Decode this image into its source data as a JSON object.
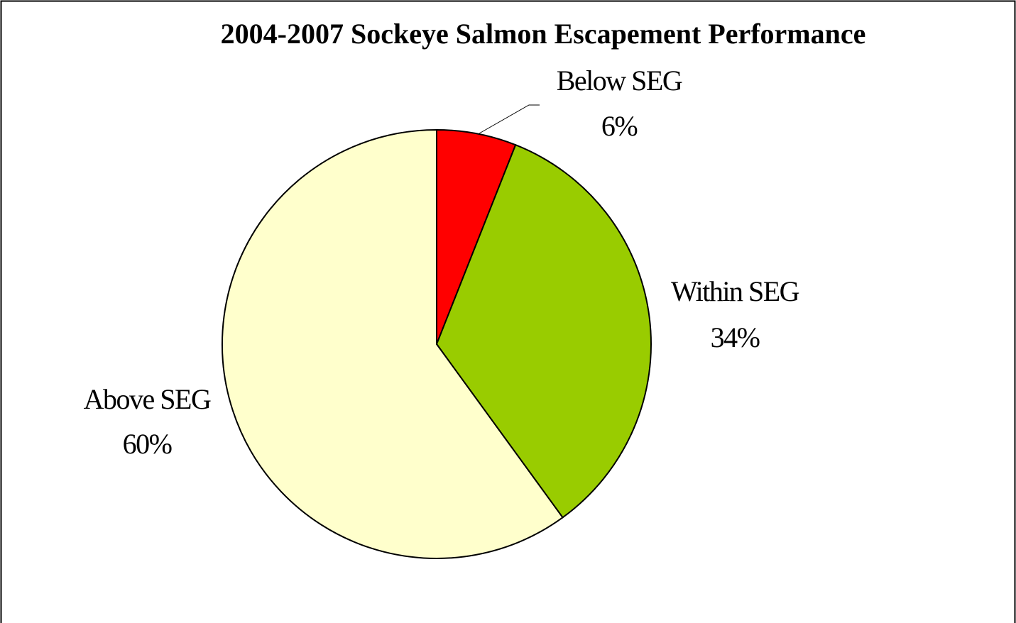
{
  "chart_data": {
    "type": "pie",
    "title": "2004-2007 Sockeye Salmon Escapement Performance",
    "categories": [
      "Below SEG",
      "Within SEG",
      "Above SEG"
    ],
    "values": [
      6,
      34,
      60
    ],
    "value_labels": [
      "6%",
      "34%",
      "60%"
    ],
    "colors": [
      "#ff0000",
      "#99cc00",
      "#ffffcc"
    ]
  }
}
